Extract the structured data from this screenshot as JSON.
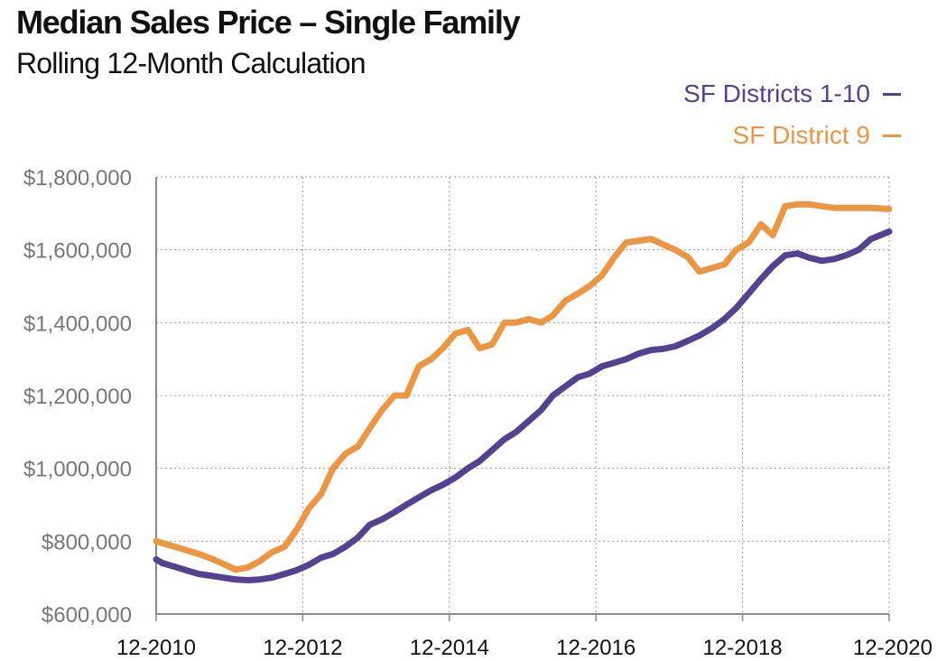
{
  "chart_data": {
    "type": "line",
    "title": "Median Sales Price – Single Family",
    "subtitle": "Rolling 12-Month Calculation",
    "xlabel": "",
    "ylabel": "",
    "x_tick_labels": [
      "12-2010",
      "12-2012",
      "12-2014",
      "12-2016",
      "12-2018",
      "12-2020"
    ],
    "y_tick_labels": [
      "$600,000",
      "$800,000",
      "$1,000,000",
      "$1,200,000",
      "$1,400,000",
      "$1,600,000",
      "$1,800,000"
    ],
    "ylim": [
      600000,
      1800000
    ],
    "xlim": [
      2010.917,
      2020.917
    ],
    "grid": "dotted",
    "legend_position": "top-right",
    "series": [
      {
        "name": "SF Districts 1-10",
        "color": "#54418f",
        "x": [
          2010.917,
          2011.0,
          2011.17,
          2011.33,
          2011.5,
          2011.67,
          2011.83,
          2012.0,
          2012.17,
          2012.33,
          2012.5,
          2012.67,
          2012.83,
          2013.0,
          2013.17,
          2013.33,
          2013.5,
          2013.67,
          2013.83,
          2014.0,
          2014.17,
          2014.33,
          2014.5,
          2014.67,
          2014.83,
          2015.0,
          2015.17,
          2015.33,
          2015.5,
          2015.67,
          2015.83,
          2016.0,
          2016.17,
          2016.33,
          2016.5,
          2016.67,
          2016.83,
          2017.0,
          2017.17,
          2017.33,
          2017.5,
          2017.67,
          2017.83,
          2018.0,
          2018.17,
          2018.33,
          2018.5,
          2018.67,
          2018.83,
          2019.0,
          2019.17,
          2019.33,
          2019.5,
          2019.67,
          2019.83,
          2020.0,
          2020.17,
          2020.33,
          2020.5,
          2020.67,
          2020.917
        ],
        "values": [
          750000,
          740000,
          730000,
          720000,
          710000,
          705000,
          700000,
          695000,
          693000,
          695000,
          700000,
          710000,
          720000,
          735000,
          755000,
          765000,
          785000,
          810000,
          845000,
          860000,
          880000,
          900000,
          920000,
          940000,
          955000,
          975000,
          1000000,
          1020000,
          1050000,
          1080000,
          1100000,
          1130000,
          1160000,
          1200000,
          1225000,
          1250000,
          1260000,
          1280000,
          1290000,
          1300000,
          1315000,
          1325000,
          1328000,
          1335000,
          1350000,
          1365000,
          1385000,
          1410000,
          1440000,
          1480000,
          1520000,
          1555000,
          1585000,
          1590000,
          1578000,
          1570000,
          1575000,
          1585000,
          1600000,
          1630000,
          1650000
        ]
      },
      {
        "name": "SF District 9",
        "color": "#ec9643",
        "x": [
          2010.917,
          2011.0,
          2011.17,
          2011.33,
          2011.5,
          2011.67,
          2011.83,
          2012.0,
          2012.17,
          2012.33,
          2012.5,
          2012.67,
          2012.83,
          2013.0,
          2013.17,
          2013.33,
          2013.5,
          2013.67,
          2013.83,
          2014.0,
          2014.17,
          2014.33,
          2014.5,
          2014.67,
          2014.83,
          2015.0,
          2015.17,
          2015.33,
          2015.5,
          2015.67,
          2015.83,
          2016.0,
          2016.17,
          2016.33,
          2016.5,
          2016.67,
          2016.83,
          2017.0,
          2017.17,
          2017.33,
          2017.5,
          2017.67,
          2017.83,
          2018.0,
          2018.17,
          2018.33,
          2018.5,
          2018.67,
          2018.83,
          2019.0,
          2019.17,
          2019.33,
          2019.5,
          2019.67,
          2019.83,
          2020.0,
          2020.17,
          2020.33,
          2020.5,
          2020.67,
          2020.917
        ],
        "values": [
          800000,
          795000,
          785000,
          775000,
          765000,
          752000,
          738000,
          722000,
          728000,
          745000,
          770000,
          785000,
          830000,
          890000,
          930000,
          1000000,
          1040000,
          1060000,
          1110000,
          1160000,
          1200000,
          1200000,
          1280000,
          1300000,
          1330000,
          1370000,
          1380000,
          1330000,
          1340000,
          1400000,
          1400000,
          1410000,
          1400000,
          1420000,
          1460000,
          1480000,
          1500000,
          1530000,
          1580000,
          1620000,
          1625000,
          1630000,
          1615000,
          1600000,
          1580000,
          1540000,
          1550000,
          1560000,
          1600000,
          1620000,
          1670000,
          1640000,
          1720000,
          1725000,
          1725000,
          1720000,
          1715000,
          1715000,
          1715000,
          1715000,
          1712000
        ]
      }
    ]
  }
}
